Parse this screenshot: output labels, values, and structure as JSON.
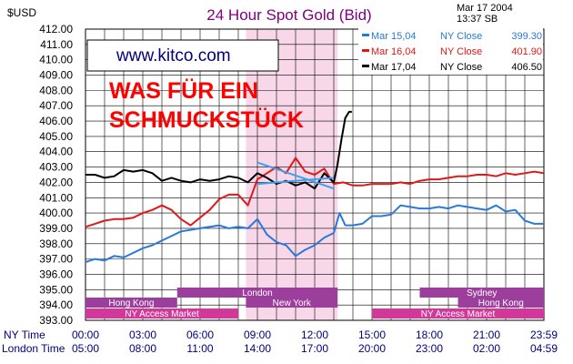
{
  "chart_data": {
    "type": "line",
    "title": "24 Hour Spot Gold (Bid)",
    "ylabel": "$USD",
    "date_line": "Mar  17  2004",
    "time_line": "13:37  SB",
    "watermark": "www.kitco.com",
    "annotation": [
      "WAS FÜR EIN",
      "SCHMUCKSTÜCK"
    ],
    "ylim": [
      393.0,
      412.0
    ],
    "yticks": [
      "412.00",
      "411.00",
      "410.00",
      "409.00",
      "408.00",
      "407.00",
      "406.00",
      "405.00",
      "404.00",
      "403.00",
      "402.00",
      "401.00",
      "400.00",
      "399.00",
      "398.00",
      "397.00",
      "396.00",
      "395.00",
      "394.00",
      "393.00"
    ],
    "xlim": [
      0,
      24
    ],
    "xticks": [
      {
        "x": 0,
        "ny": "00:00",
        "london": "05:00"
      },
      {
        "x": 3,
        "ny": "03:00",
        "london": "08:00"
      },
      {
        "x": 6,
        "ny": "06:00",
        "london": "11:00"
      },
      {
        "x": 9,
        "ny": "09:00",
        "london": "14:00"
      },
      {
        "x": 12,
        "ny": "12:00",
        "london": "17:00"
      },
      {
        "x": 15,
        "ny": "15:00",
        "london": "20:00"
      },
      {
        "x": 18,
        "ny": "18:00",
        "london": "23:00"
      },
      {
        "x": 21,
        "ny": "21:00",
        "london": "02:00"
      },
      {
        "x": 24,
        "ny": "23:59",
        "london": "04:59"
      }
    ],
    "axis_row_labels": {
      "ny": "NY Time",
      "london": "London Time"
    },
    "grid": true,
    "legend_position": "top-right",
    "ny_session_shade": {
      "from": 8.4,
      "to": 13.2,
      "color": "#f8d8e8"
    },
    "series": [
      {
        "name": "Mar 15,04",
        "close_label": "NY  Close",
        "close": "399.30",
        "color": "#2a78d8",
        "points": [
          [
            0,
            396.8
          ],
          [
            0.5,
            397.0
          ],
          [
            1,
            396.9
          ],
          [
            1.5,
            397.2
          ],
          [
            2,
            397.1
          ],
          [
            2.5,
            397.4
          ],
          [
            3,
            397.7
          ],
          [
            3.5,
            397.9
          ],
          [
            4,
            398.2
          ],
          [
            4.5,
            398.5
          ],
          [
            5,
            398.8
          ],
          [
            5.5,
            398.9
          ],
          [
            6,
            399.0
          ],
          [
            6.5,
            399.1
          ],
          [
            7,
            399.2
          ],
          [
            7.5,
            399.0
          ],
          [
            8,
            399.1
          ],
          [
            8.5,
            399.0
          ],
          [
            9,
            399.6
          ],
          [
            9.5,
            398.6
          ],
          [
            10,
            398.1
          ],
          [
            10.5,
            397.9
          ],
          [
            11,
            397.2
          ],
          [
            11.5,
            397.6
          ],
          [
            12,
            397.9
          ],
          [
            12.5,
            398.4
          ],
          [
            13,
            398.7
          ],
          [
            13.3,
            400.0
          ],
          [
            13.6,
            399.2
          ],
          [
            14,
            399.2
          ],
          [
            14.5,
            399.3
          ],
          [
            15,
            399.8
          ],
          [
            15.5,
            399.8
          ],
          [
            16,
            399.9
          ],
          [
            16.5,
            400.5
          ],
          [
            17,
            400.4
          ],
          [
            17.5,
            400.3
          ],
          [
            18,
            400.3
          ],
          [
            18.5,
            400.4
          ],
          [
            19,
            400.3
          ],
          [
            19.5,
            400.5
          ],
          [
            20,
            400.4
          ],
          [
            20.5,
            400.3
          ],
          [
            21,
            400.2
          ],
          [
            21.5,
            400.5
          ],
          [
            22,
            400.1
          ],
          [
            22.5,
            400.2
          ],
          [
            23,
            399.5
          ],
          [
            23.5,
            399.3
          ],
          [
            24,
            399.3
          ]
        ]
      },
      {
        "name": "Mar 16,04",
        "close_label": "NY  Close",
        "close": "401.90",
        "color": "#e01818",
        "points": [
          [
            0,
            399.1
          ],
          [
            0.5,
            399.3
          ],
          [
            1,
            399.5
          ],
          [
            1.5,
            399.6
          ],
          [
            2,
            399.6
          ],
          [
            2.5,
            399.7
          ],
          [
            3,
            400.0
          ],
          [
            3.5,
            400.2
          ],
          [
            4,
            400.5
          ],
          [
            4.5,
            400.2
          ],
          [
            5,
            399.6
          ],
          [
            5.5,
            399.2
          ],
          [
            6,
            399.7
          ],
          [
            6.5,
            400.2
          ],
          [
            7,
            400.9
          ],
          [
            7.5,
            401.2
          ],
          [
            8,
            401.2
          ],
          [
            8.5,
            400.5
          ],
          [
            9,
            402.2
          ],
          [
            9.5,
            402.6
          ],
          [
            10,
            403.0
          ],
          [
            10.5,
            402.6
          ],
          [
            11,
            403.6
          ],
          [
            11.5,
            402.7
          ],
          [
            12,
            402.5
          ],
          [
            12.5,
            402.9
          ],
          [
            13,
            401.9
          ],
          [
            13.5,
            402.0
          ],
          [
            14,
            401.8
          ],
          [
            14.5,
            401.8
          ],
          [
            15,
            401.9
          ],
          [
            15.5,
            401.9
          ],
          [
            16,
            401.9
          ],
          [
            16.5,
            402.0
          ],
          [
            17,
            401.9
          ],
          [
            17.5,
            402.1
          ],
          [
            18,
            402.2
          ],
          [
            18.5,
            402.2
          ],
          [
            19,
            402.3
          ],
          [
            19.5,
            402.4
          ],
          [
            20,
            402.4
          ],
          [
            20.5,
            402.5
          ],
          [
            21,
            402.5
          ],
          [
            21.5,
            402.4
          ],
          [
            22,
            402.6
          ],
          [
            22.5,
            402.5
          ],
          [
            23,
            402.6
          ],
          [
            23.5,
            402.7
          ],
          [
            24,
            402.6
          ]
        ]
      },
      {
        "name": "Mar 17,04",
        "close_label": "NY  Close",
        "close": "406.50",
        "color": "#000000",
        "points": [
          [
            0,
            402.5
          ],
          [
            0.5,
            402.5
          ],
          [
            1,
            402.3
          ],
          [
            1.5,
            402.4
          ],
          [
            2,
            402.8
          ],
          [
            2.5,
            402.7
          ],
          [
            3,
            402.8
          ],
          [
            3.5,
            402.6
          ],
          [
            4,
            402.1
          ],
          [
            4.5,
            402.3
          ],
          [
            5,
            402.1
          ],
          [
            5.5,
            402.0
          ],
          [
            6,
            402.2
          ],
          [
            6.5,
            402.1
          ],
          [
            7,
            402.2
          ],
          [
            7.5,
            402.4
          ],
          [
            8,
            402.3
          ],
          [
            8.5,
            402.0
          ],
          [
            9,
            402.6
          ],
          [
            9.5,
            402.3
          ],
          [
            10,
            401.9
          ],
          [
            10.5,
            402.1
          ],
          [
            11,
            401.8
          ],
          [
            11.5,
            402.0
          ],
          [
            12,
            401.6
          ],
          [
            12.5,
            402.6
          ],
          [
            13,
            402.0
          ],
          [
            13.2,
            403.2
          ],
          [
            13.4,
            404.8
          ],
          [
            13.6,
            406.2
          ],
          [
            13.8,
            406.6
          ],
          [
            13.95,
            406.6
          ]
        ]
      }
    ],
    "trendlines": {
      "color": "#3ea0f0",
      "lines": [
        [
          [
            9,
            403.3
          ],
          [
            13,
            401.6
          ]
        ],
        [
          [
            9,
            401.9
          ],
          [
            13,
            402.3
          ]
        ]
      ]
    },
    "sessions": [
      {
        "label": "London",
        "from": 4.8,
        "to": 13.2,
        "row": 0,
        "color": "#9c3f9c"
      },
      {
        "label": "Sydney",
        "from": 17.5,
        "to": 24,
        "row": 0,
        "color": "#9c3f9c"
      },
      {
        "label": "Hong  Kong",
        "from": 0,
        "to": 4.8,
        "row": 1,
        "color": "#9c3f9c"
      },
      {
        "label": "New  York",
        "from": 8.4,
        "to": 13.2,
        "row": 1,
        "color": "#9c3f9c"
      },
      {
        "label": "Hong  Kong",
        "from": 19.5,
        "to": 24,
        "row": 1,
        "color": "#9c3f9c"
      },
      {
        "label": "NY  Access  Market",
        "from": 0,
        "to": 8.0,
        "row": 2,
        "color": "#d2389a"
      },
      {
        "label": "NY  Access  Market",
        "from": 15.0,
        "to": 24,
        "row": 2,
        "color": "#d2389a"
      }
    ]
  }
}
